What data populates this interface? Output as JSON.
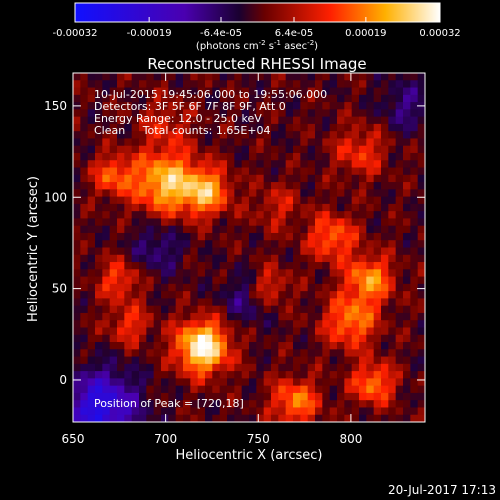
{
  "colorbar": {
    "tick_labels": [
      "-0.00032",
      "-0.00019",
      "-6.4e-05",
      "6.4e-05",
      "0.00019",
      "0.00032"
    ],
    "tick_values": [
      -0.00032,
      -0.00019,
      -6.4e-05,
      6.4e-05,
      0.00019,
      0.00032
    ],
    "range": [
      -0.00032,
      0.00032
    ],
    "units_main": "(photons cm",
    "units_exp1": "-2",
    "units_mid": " s",
    "units_exp2": "-1",
    "units_mid2": " asec",
    "units_exp3": "-2",
    "units_end": ")"
  },
  "chart_data": {
    "type": "heatmap",
    "title": "Reconstructed RHESSI Image",
    "xlabel": "Heliocentric X (arcsec)",
    "ylabel": "Heliocentric Y (arcsec)",
    "xlim": [
      650,
      840
    ],
    "ylim": [
      -23,
      168
    ],
    "xticks": [
      650,
      700,
      750,
      800
    ],
    "yticks": [
      0,
      50,
      100,
      150
    ],
    "xtick_labels": [
      "650",
      "700",
      "750",
      "800"
    ],
    "ytick_labels": [
      "0",
      "50",
      "100",
      "150"
    ],
    "colormap": "red-temperature (blue→purple→red→orange→yellow→white)",
    "blobs": [
      {
        "x": 720,
        "y": 18,
        "amp": 1.0,
        "r": 10
      },
      {
        "x": 700,
        "y": 108,
        "amp": 0.75,
        "r": 12
      },
      {
        "x": 722,
        "y": 103,
        "amp": 0.65,
        "r": 9
      },
      {
        "x": 672,
        "y": 112,
        "amp": 0.45,
        "r": 8
      },
      {
        "x": 810,
        "y": 55,
        "amp": 0.6,
        "r": 9
      },
      {
        "x": 800,
        "y": 32,
        "amp": 0.55,
        "r": 10
      },
      {
        "x": 790,
        "y": 78,
        "amp": 0.5,
        "r": 9
      },
      {
        "x": 770,
        "y": -12,
        "amp": 0.55,
        "r": 9
      },
      {
        "x": 812,
        "y": -2,
        "amp": 0.55,
        "r": 8
      },
      {
        "x": 755,
        "y": 50,
        "amp": 0.45,
        "r": 8
      },
      {
        "x": 675,
        "y": 55,
        "amp": 0.4,
        "r": 8
      },
      {
        "x": 680,
        "y": 30,
        "amp": 0.35,
        "r": 8
      },
      {
        "x": 805,
        "y": 125,
        "amp": 0.35,
        "r": 10
      },
      {
        "x": 700,
        "y": 140,
        "amp": 0.25,
        "r": 10
      },
      {
        "x": 760,
        "y": 95,
        "amp": 0.25,
        "r": 9
      },
      {
        "x": 665,
        "y": -15,
        "amp": -0.8,
        "r": 14
      },
      {
        "x": 745,
        "y": 45,
        "amp": -0.35,
        "r": 10
      },
      {
        "x": 695,
        "y": 72,
        "amp": -0.3,
        "r": 10
      },
      {
        "x": 830,
        "y": 150,
        "amp": -0.3,
        "r": 10
      }
    ],
    "annotations": [
      "10-Jul-2015 19:45:06.000 to 19:55:06.000",
      "Detectors: 3F 5F 6F 7F 8F 9F, Att 0",
      "Energy Range: 12.0 - 25.0 keV",
      "Clean     Total counts: 1.65E+04"
    ],
    "peak_label": "Position of Peak = [720,18]"
  },
  "footer": {
    "timestamp": "20-Jul-2017 17:13"
  }
}
